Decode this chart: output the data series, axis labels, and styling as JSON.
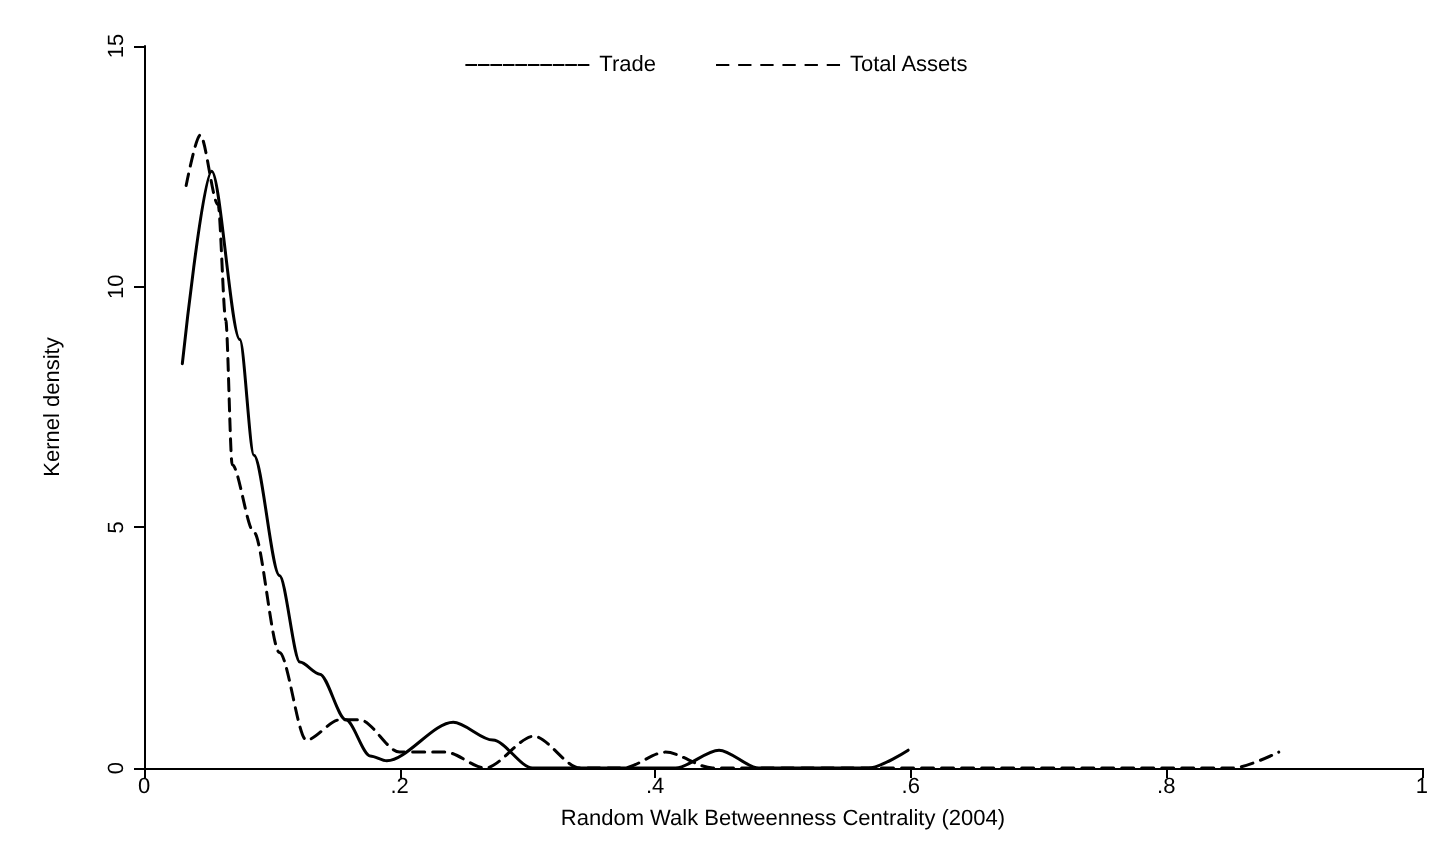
{
  "chart_data": {
    "type": "line",
    "xlabel": "Random Walk Betweenness Centrality (2004)",
    "ylabel": "Kernel density",
    "xlim": [
      0,
      1
    ],
    "xticks": [
      {
        "value": 0,
        "label": "0"
      },
      {
        "value": 0.2,
        "label": ".2"
      },
      {
        "value": 0.4,
        "label": ".4"
      },
      {
        "value": 0.6,
        "label": ".6"
      },
      {
        "value": 0.8,
        "label": ".8"
      },
      {
        "value": 1,
        "label": "1"
      }
    ],
    "ylim": [
      0,
      15
    ],
    "yticks": [
      0,
      5,
      10,
      15
    ],
    "grid": false,
    "legend": "top",
    "marker": "none",
    "series": [
      {
        "name": "Trade",
        "color": "#000000",
        "line_style": "solid",
        "x": [
          0.03,
          0.053,
          0.075,
          0.086,
          0.106,
          0.122,
          0.1375,
          0.158,
          0.177,
          0.19,
          0.242,
          0.273,
          0.304,
          0.416,
          0.45,
          0.481,
          0.567,
          0.598
        ],
        "values": [
          8.4,
          12.4,
          8.9,
          6.5,
          4.0,
          2.2,
          1.95,
          1.0,
          0.25,
          0.15,
          0.95,
          0.58,
          0,
          0,
          0.37,
          0,
          0,
          0.37
        ]
      },
      {
        "name": "Total Assets",
        "color": "#000000",
        "line_style": "dashed",
        "x": [
          0.033,
          0.044,
          0.058,
          0.064,
          0.069,
          0.086,
          0.106,
          0.127,
          0.153,
          0.169,
          0.2,
          0.236,
          0.267,
          0.305,
          0.341,
          0.375,
          0.408,
          0.445,
          0.852,
          0.888
        ],
        "values": [
          12.1,
          13.15,
          11.7,
          9.3,
          6.3,
          4.9,
          2.4,
          0.58,
          1.0,
          1.0,
          0.33,
          0.33,
          0,
          0.66,
          0,
          0,
          0.33,
          0,
          0,
          0.33
        ]
      }
    ]
  }
}
